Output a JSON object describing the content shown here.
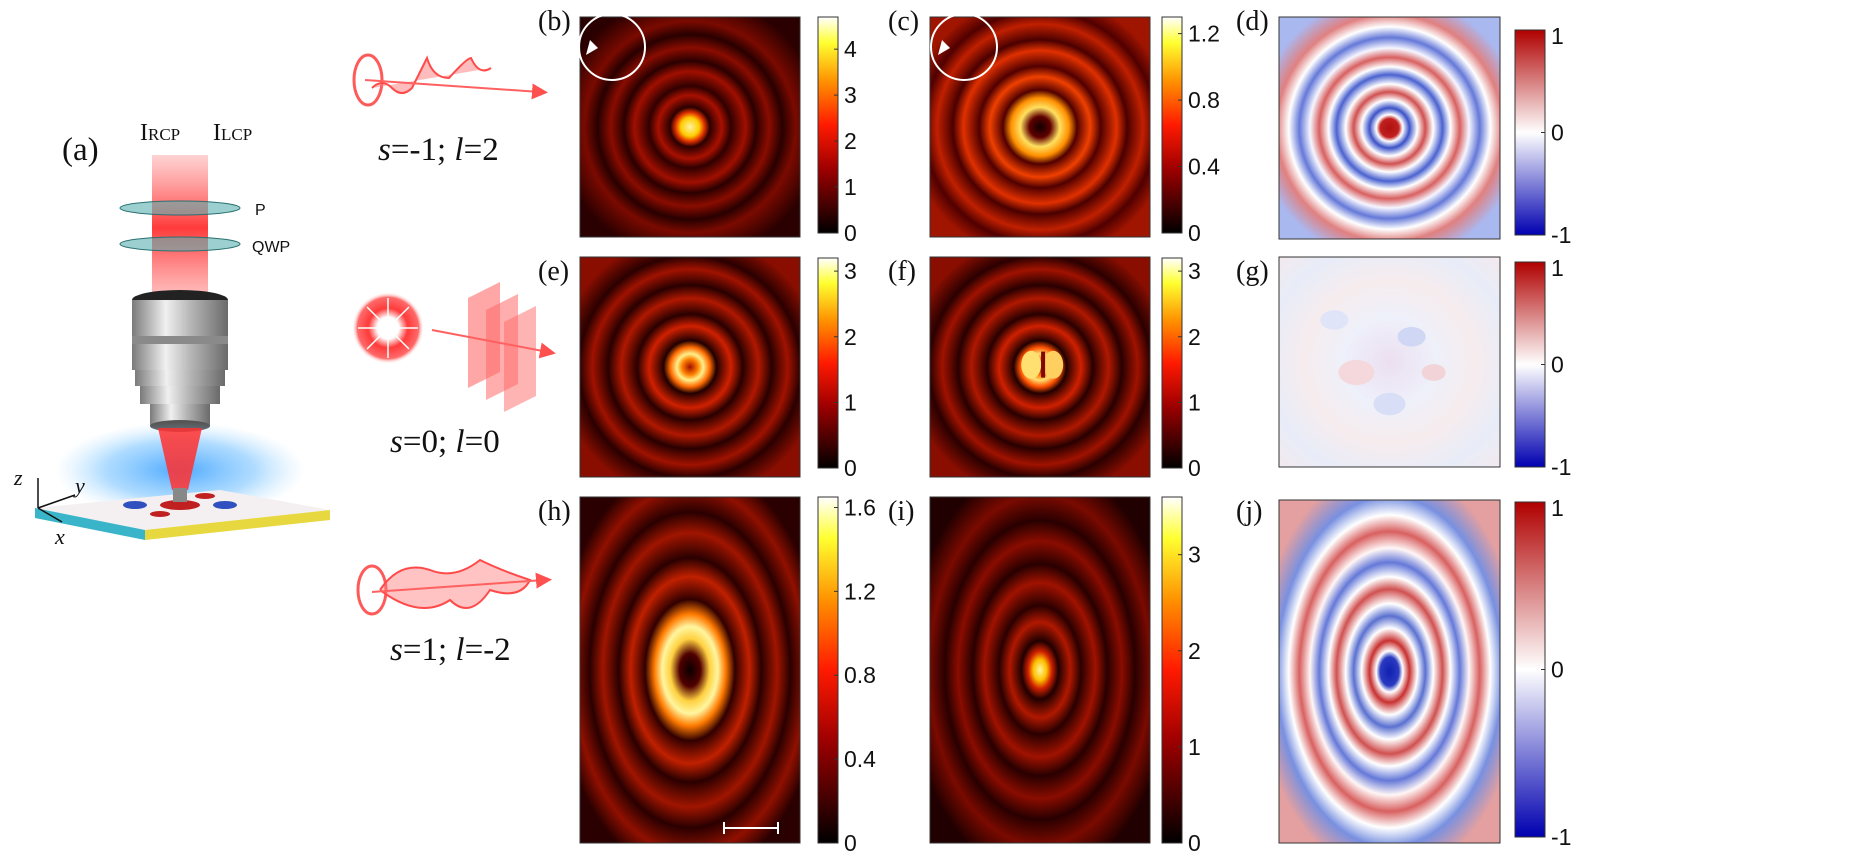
{
  "panel_labels": {
    "a": "(a)",
    "b": "(b)",
    "c": "(c)",
    "d": "(d)",
    "e": "(e)",
    "f": "(f)",
    "g": "(g)",
    "h": "(h)",
    "i": "(i)",
    "j": "(j)"
  },
  "schematic": {
    "beam_label_left_main": "I",
    "beam_label_left_sub": "RCP",
    "beam_label_right_main": "I",
    "beam_label_right_sub": "LCP",
    "polarizer": "P",
    "waveplate": "QWP",
    "axis_z": "z",
    "axis_y": "y",
    "axis_x": "x"
  },
  "beam_rows": [
    {
      "s": "-1",
      "l": "2",
      "icon": "helical-phase-front-icon"
    },
    {
      "s": "0",
      "l": "0",
      "icon": "radial-polarization-plane-wave-icon"
    },
    {
      "s": "1",
      "l": "-2",
      "icon": "helical-phase-front-icon"
    }
  ],
  "caption_tokens": {
    "s": "s",
    "l": "l",
    "eq": "=",
    "sep": "; "
  },
  "colors": {
    "hot_colormap": [
      "#000000",
      "#800000",
      "#ff0000",
      "#ff8000",
      "#ffff00",
      "#ffffff"
    ],
    "diverging_colormap": [
      "#0000b0",
      "#ffffff",
      "#b00000"
    ],
    "annotation_white": "#ffffff"
  },
  "chart_data": [
    {
      "panel": "b",
      "type": "heatmap",
      "colormap": "hot",
      "pattern": "bright central spot with concentric rings",
      "colorbar_ticks": [
        "4",
        "3",
        "2",
        "1",
        "0"
      ],
      "vmin": 0,
      "vmax": 4.7
    },
    {
      "panel": "c",
      "type": "heatmap",
      "colormap": "hot",
      "pattern": "donut with concentric rings",
      "colorbar_ticks": [
        "1.2",
        "0.8",
        "0.4",
        "0"
      ],
      "vmin": 0,
      "vmax": 1.3
    },
    {
      "panel": "d",
      "type": "heatmap",
      "colormap": "diverging",
      "pattern": "positive center with alternating rings",
      "colorbar_ticks": [
        "1",
        "0",
        "-1"
      ],
      "vmin": -1,
      "vmax": 1
    },
    {
      "panel": "e",
      "type": "heatmap",
      "colormap": "hot",
      "pattern": "small donut with concentric rings",
      "colorbar_ticks": [
        "3",
        "2",
        "1",
        "0"
      ],
      "vmin": 0,
      "vmax": 3.2
    },
    {
      "panel": "f",
      "type": "heatmap",
      "colormap": "hot",
      "pattern": "split two-lobe center with concentric rings",
      "colorbar_ticks": [
        "3",
        "2",
        "1",
        "0"
      ],
      "vmin": 0,
      "vmax": 3.2
    },
    {
      "panel": "g",
      "type": "heatmap",
      "colormap": "diverging",
      "pattern": "near-zero weak speckle",
      "colorbar_ticks": [
        "1",
        "0",
        "-1"
      ],
      "vmin": -1,
      "vmax": 1
    },
    {
      "panel": "h",
      "type": "heatmap",
      "colormap": "hot",
      "pattern": "large donut with concentric rings",
      "colorbar_ticks": [
        "1.6",
        "1.2",
        "0.8",
        "0.4",
        "0"
      ],
      "vmin": 0,
      "vmax": 1.65
    },
    {
      "panel": "i",
      "type": "heatmap",
      "colormap": "hot",
      "pattern": "bright central spot with concentric rings",
      "colorbar_ticks": [
        "3",
        "2",
        "1",
        "0"
      ],
      "vmin": 0,
      "vmax": 3.6
    },
    {
      "panel": "j",
      "type": "heatmap",
      "colormap": "diverging",
      "pattern": "negative center with alternating rings",
      "colorbar_ticks": [
        "1",
        "0",
        "-1"
      ],
      "vmin": -1,
      "vmax": 1
    }
  ]
}
